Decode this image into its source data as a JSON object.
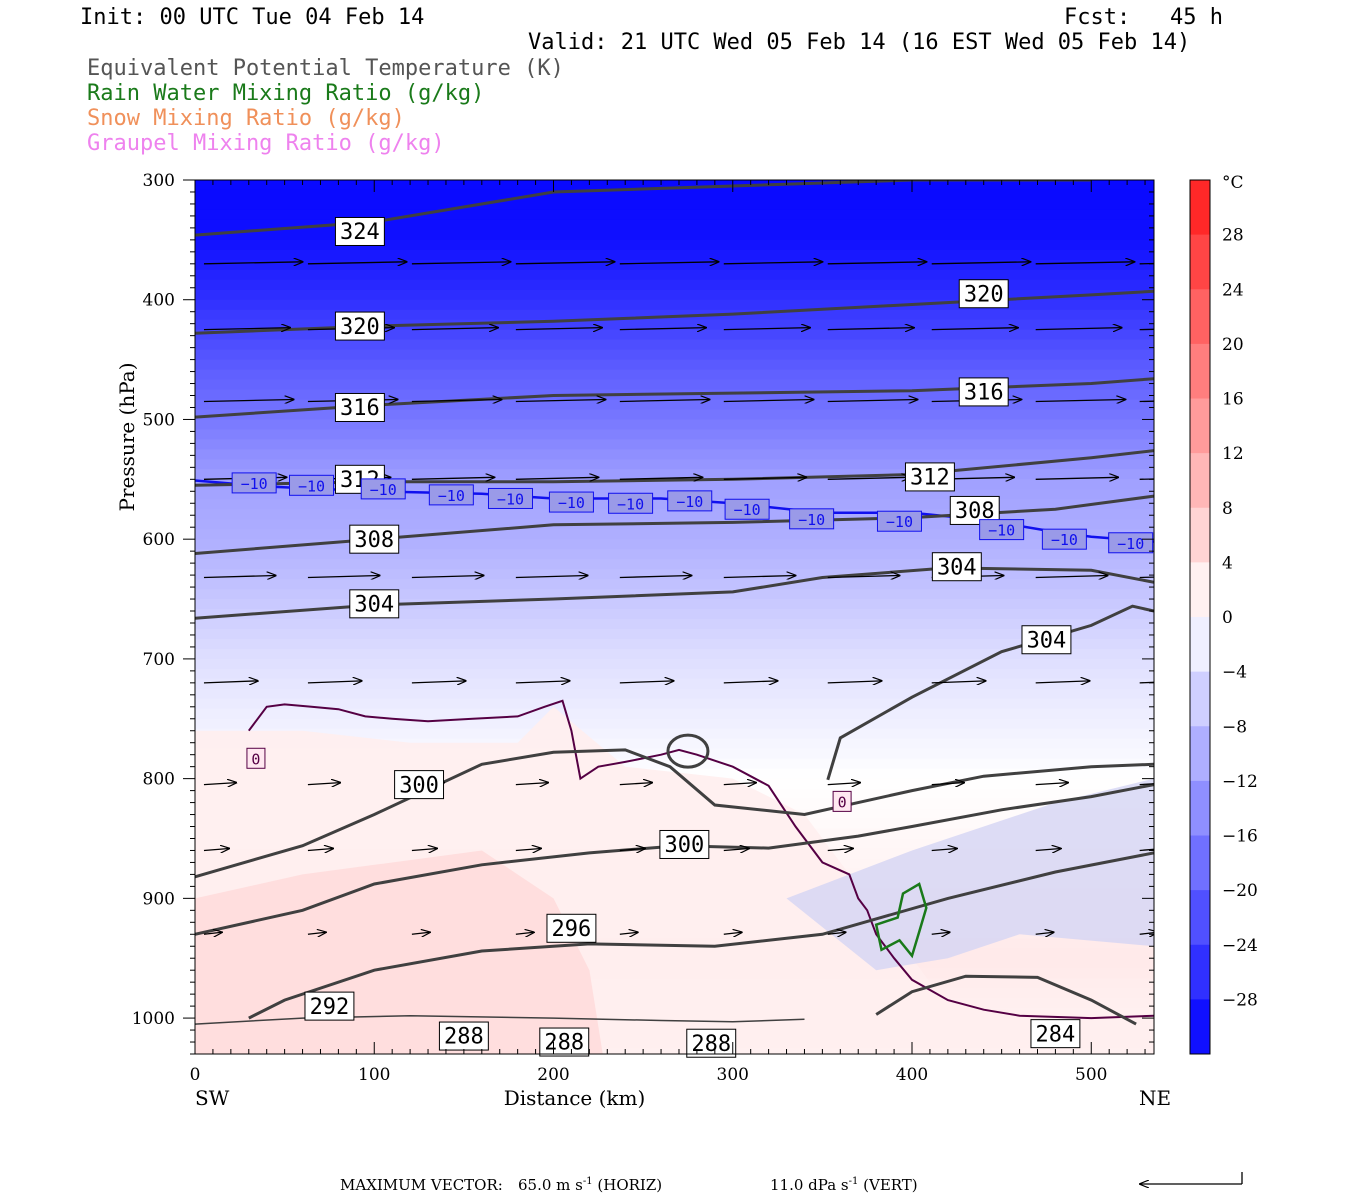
{
  "header": {
    "init": "Init: 00 UTC Tue 04 Feb 14",
    "fcst": "Fcst:   45 h",
    "valid": "Valid: 21 UTC Wed 05 Feb 14 (16 EST Wed 05 Feb 14)"
  },
  "fields": [
    {
      "label": "Equivalent Potential Temperature (K)",
      "color": "#555555"
    },
    {
      "label": "Rain Water Mixing Ratio (g/kg)",
      "color": "#1a7a1a"
    },
    {
      "label": "Snow Mixing Ratio (g/kg)",
      "color": "#f0905a"
    },
    {
      "label": "Graupel Mixing Ratio (g/kg)",
      "color": "#ee82ee"
    }
  ],
  "chart_data": {
    "type": "heatmap",
    "subtype": "vertical cross-section",
    "xlabel": "Distance (km)",
    "ylabel": "Pressure (hPa)",
    "xlim": [
      0,
      535
    ],
    "ylim": [
      1030,
      300
    ],
    "x_ticks": [
      0,
      100,
      200,
      300,
      400,
      500
    ],
    "y_ticks": [
      300,
      400,
      500,
      600,
      700,
      800,
      900,
      1000
    ],
    "x_end_labels": {
      "left": "SW",
      "right": "NE"
    },
    "colorbar": {
      "unit": "°C",
      "tick_labels": [
        "28",
        "24",
        "20",
        "16",
        "12",
        "8",
        "4",
        "0",
        "−4",
        "−8",
        "−12",
        "−16",
        "−20",
        "−24",
        "−28"
      ],
      "tick_values": [
        28,
        24,
        20,
        16,
        12,
        8,
        4,
        0,
        -4,
        -8,
        -12,
        -16,
        -20,
        -24,
        -28
      ],
      "range": [
        -32,
        32
      ],
      "warm_color": "#ff1a1a",
      "cold_color": "#0000ff"
    },
    "temperature_field": [
      {
        "p": 300,
        "t": -31
      },
      {
        "p": 350,
        "t": -30
      },
      {
        "p": 400,
        "t": -26
      },
      {
        "p": 450,
        "t": -21
      },
      {
        "p": 500,
        "t": -17
      },
      {
        "p": 550,
        "t": -12
      },
      {
        "p": 600,
        "t": -10
      },
      {
        "p": 650,
        "t": -7
      },
      {
        "p": 700,
        "t": -4
      },
      {
        "p": 750,
        "t": -2
      },
      {
        "p": 800,
        "t": 0
      },
      {
        "p": 850,
        "t": 1
      },
      {
        "p": 900,
        "t": 2
      },
      {
        "p": 950,
        "t": 3
      },
      {
        "p": 1000,
        "t": 2
      },
      {
        "p": 1030,
        "t": 1
      }
    ],
    "theta_e_contours": [
      {
        "value": 324,
        "points": [
          [
            0,
            346
          ],
          [
            100,
            335
          ],
          [
            200,
            310
          ],
          [
            300,
            305
          ],
          [
            400,
            300
          ],
          [
            500,
            300
          ]
        ],
        "labels": [
          [
            92,
            343
          ]
        ]
      },
      {
        "value": 320,
        "points": [
          [
            0,
            428
          ],
          [
            100,
            422
          ],
          [
            200,
            418
          ],
          [
            300,
            412
          ],
          [
            400,
            404
          ],
          [
            500,
            396
          ],
          [
            535,
            393
          ]
        ],
        "labels": [
          [
            92,
            422
          ],
          [
            440,
            395
          ]
        ]
      },
      {
        "value": 316,
        "points": [
          [
            0,
            498
          ],
          [
            100,
            488
          ],
          [
            200,
            480
          ],
          [
            300,
            478
          ],
          [
            400,
            476
          ],
          [
            500,
            470
          ],
          [
            535,
            466
          ]
        ],
        "labels": [
          [
            92,
            490
          ],
          [
            440,
            477
          ]
        ]
      },
      {
        "value": 312,
        "points": [
          [
            0,
            555
          ],
          [
            100,
            552
          ],
          [
            200,
            552
          ],
          [
            300,
            550
          ],
          [
            400,
            546
          ],
          [
            500,
            532
          ],
          [
            535,
            526
          ]
        ],
        "labels": [
          [
            92,
            550
          ],
          [
            410,
            548
          ]
        ]
      },
      {
        "value": 308,
        "points": [
          [
            0,
            612
          ],
          [
            100,
            600
          ],
          [
            200,
            588
          ],
          [
            300,
            586
          ],
          [
            400,
            582
          ],
          [
            480,
            575
          ],
          [
            535,
            564
          ]
        ],
        "labels": [
          [
            100,
            600
          ],
          [
            435,
            576
          ]
        ]
      },
      {
        "value": 304,
        "points": [
          [
            0,
            666
          ],
          [
            100,
            655
          ],
          [
            200,
            650
          ],
          [
            300,
            644
          ],
          [
            350,
            632
          ],
          [
            420,
            624
          ],
          [
            500,
            626
          ],
          [
            535,
            636
          ]
        ],
        "labels": [
          [
            100,
            654
          ],
          [
            425,
            623
          ]
        ]
      },
      {
        "value": 304,
        "points": [
          [
            353,
            801
          ],
          [
            360,
            766
          ],
          [
            400,
            732
          ],
          [
            450,
            694
          ],
          [
            500,
            672
          ],
          [
            523,
            656
          ],
          [
            535,
            660
          ]
        ],
        "labels": [
          [
            475,
            684
          ]
        ]
      },
      {
        "value": 300,
        "points": [
          [
            0,
            882
          ],
          [
            60,
            856
          ],
          [
            100,
            830
          ],
          [
            160,
            788
          ],
          [
            200,
            778
          ],
          [
            240,
            776
          ],
          [
            265,
            790
          ],
          [
            290,
            822
          ],
          [
            340,
            830
          ],
          [
            400,
            810
          ],
          [
            440,
            798
          ],
          [
            500,
            790
          ],
          [
            535,
            788
          ]
        ],
        "labels": [
          [
            125,
            805
          ],
          [
            273,
            855
          ]
        ]
      },
      {
        "value": 296,
        "points": [
          [
            0,
            930
          ],
          [
            60,
            910
          ],
          [
            100,
            888
          ],
          [
            160,
            872
          ],
          [
            220,
            862
          ],
          [
            270,
            856
          ],
          [
            320,
            858
          ],
          [
            370,
            848
          ],
          [
            400,
            840
          ],
          [
            450,
            826
          ],
          [
            500,
            815
          ],
          [
            535,
            805
          ]
        ],
        "labels": [
          [
            210,
            925
          ]
        ]
      },
      {
        "value": 292,
        "points": [
          [
            30,
            1000
          ],
          [
            50,
            985
          ],
          [
            100,
            960
          ],
          [
            160,
            944
          ],
          [
            220,
            938
          ],
          [
            290,
            940
          ],
          [
            350,
            930
          ],
          [
            420,
            900
          ],
          [
            480,
            878
          ],
          [
            535,
            862
          ]
        ],
        "labels": [
          [
            75,
            990
          ]
        ]
      },
      {
        "value": 288,
        "points": [
          [
            0,
            1005
          ],
          [
            60,
            1000
          ],
          [
            120,
            998
          ],
          [
            200,
            1000
          ],
          [
            260,
            1002
          ],
          [
            300,
            1003
          ],
          [
            340,
            1001
          ]
        ],
        "labels": [
          [
            150,
            1015
          ],
          [
            206,
            1020
          ],
          [
            288,
            1021
          ]
        ]
      },
      {
        "value": 284,
        "points": [
          [
            380,
            997
          ],
          [
            400,
            978
          ],
          [
            430,
            965
          ],
          [
            470,
            966
          ],
          [
            500,
            985
          ],
          [
            525,
            1005
          ]
        ],
        "labels": [
          [
            480,
            1013
          ]
        ]
      }
    ],
    "isotherm_minus10": {
      "value": -10,
      "points": [
        [
          0,
          551
        ],
        [
          40,
          556
        ],
        [
          100,
          560
        ],
        [
          160,
          562
        ],
        [
          200,
          566
        ],
        [
          260,
          566
        ],
        [
          300,
          570
        ],
        [
          350,
          578
        ],
        [
          400,
          578
        ],
        [
          440,
          584
        ],
        [
          480,
          594
        ],
        [
          500,
          598
        ],
        [
          535,
          602
        ]
      ],
      "labels": [
        [
          33,
          553
        ],
        [
          65,
          555
        ],
        [
          105,
          558
        ],
        [
          143,
          563
        ],
        [
          176,
          566
        ],
        [
          210,
          569
        ],
        [
          243,
          570
        ],
        [
          276,
          568
        ],
        [
          308,
          575
        ],
        [
          344,
          583
        ],
        [
          393,
          585
        ],
        [
          450,
          592
        ],
        [
          485,
          600
        ],
        [
          522,
          603
        ]
      ]
    },
    "isotherm_zero": {
      "value": 0,
      "points": [
        [
          30,
          760
        ],
        [
          40,
          740
        ],
        [
          50,
          738
        ],
        [
          65,
          740
        ],
        [
          80,
          742
        ],
        [
          95,
          748
        ],
        [
          110,
          750
        ],
        [
          130,
          752
        ],
        [
          155,
          750
        ],
        [
          180,
          748
        ],
        [
          195,
          740
        ],
        [
          205,
          735
        ],
        [
          210,
          760
        ],
        [
          215,
          800
        ],
        [
          225,
          790
        ],
        [
          240,
          786
        ],
        [
          260,
          780
        ],
        [
          270,
          776
        ],
        [
          280,
          780
        ],
        [
          300,
          790
        ],
        [
          320,
          806
        ],
        [
          335,
          840
        ],
        [
          350,
          870
        ],
        [
          365,
          880
        ],
        [
          370,
          900
        ],
        [
          375,
          910
        ],
        [
          380,
          930
        ],
        [
          390,
          950
        ],
        [
          400,
          968
        ],
        [
          420,
          985
        ],
        [
          440,
          993
        ],
        [
          460,
          998
        ],
        [
          500,
          1000
        ],
        [
          535,
          998
        ]
      ],
      "labels": [
        [
          34,
          783
        ],
        [
          361,
          819
        ]
      ]
    },
    "rain_contour": {
      "value": 0.01,
      "points": [
        [
          383,
          943
        ],
        [
          380,
          922
        ],
        [
          392,
          916
        ],
        [
          395,
          896
        ],
        [
          404,
          888
        ],
        [
          408,
          908
        ],
        [
          404,
          928
        ],
        [
          400,
          948
        ],
        [
          393,
          935
        ]
      ]
    },
    "wind_vectors": {
      "note": "arrows point toward NE (right), strongest aloft",
      "levels": [
        {
          "p": 370,
          "length_km": 55
        },
        {
          "p": 425,
          "length_km": 48
        },
        {
          "p": 485,
          "length_km": 50
        },
        {
          "p": 550,
          "length_km": 46
        },
        {
          "p": 632,
          "length_km": 40
        },
        {
          "p": 720,
          "length_km": 30
        },
        {
          "p": 805,
          "length_km": 18
        },
        {
          "p": 860,
          "length_km": 14
        },
        {
          "p": 930,
          "length_km": 10
        }
      ]
    }
  },
  "footer": {
    "max_label": "MAXIMUM VECTOR:",
    "horiz": "65.0 m s",
    "horiz_units": "(HORIZ)",
    "vert": "11.0 dPa s",
    "vert_units": "(VERT)",
    "exp": "-1"
  }
}
